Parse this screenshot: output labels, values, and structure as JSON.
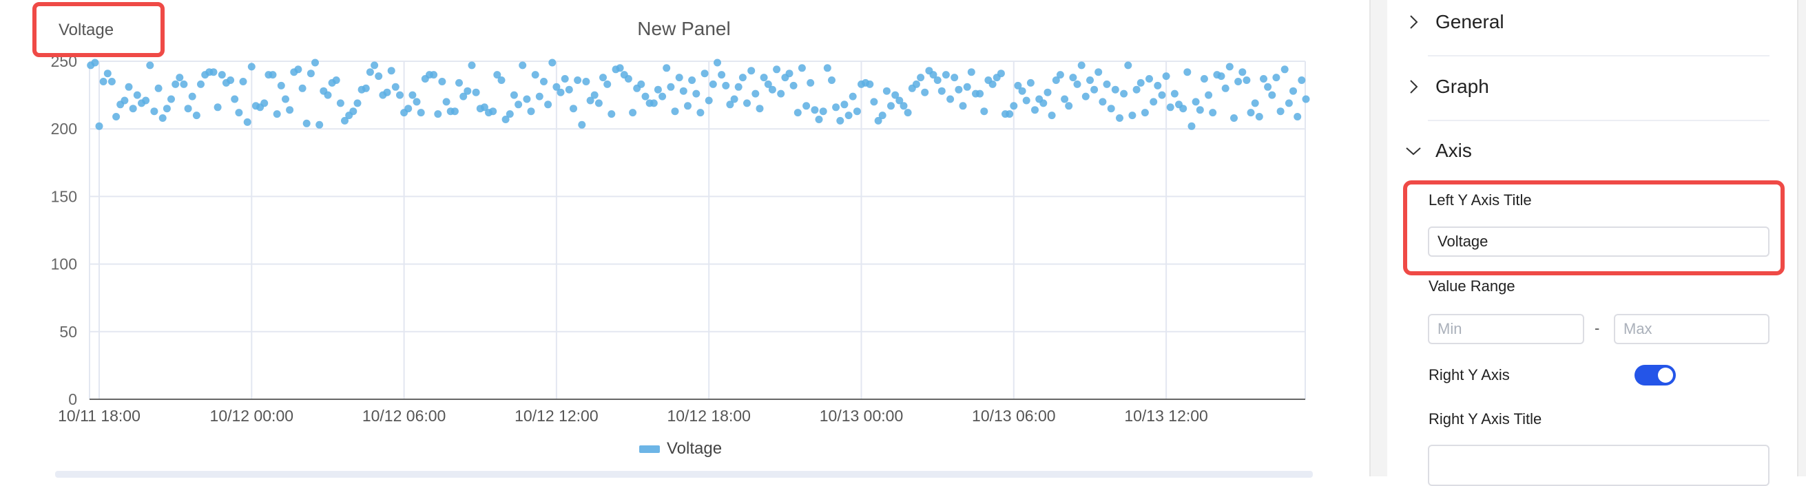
{
  "panel": {
    "title": "New Panel",
    "y_axis_title": "Voltage",
    "legend": [
      {
        "label": "Voltage",
        "color": "#6db5e6"
      }
    ]
  },
  "chart_data": {
    "type": "scatter",
    "title": "New Panel",
    "ylabel": "Voltage",
    "xlabel": "",
    "ylim": [
      0,
      250
    ],
    "yticks": [
      "0",
      "50",
      "100",
      "150",
      "200",
      "250"
    ],
    "xticks": [
      "10/11 18:00",
      "10/12 00:00",
      "10/12 06:00",
      "10/12 12:00",
      "10/12 18:00",
      "10/13 00:00",
      "10/13 06:00",
      "10/13 12:00"
    ],
    "grid": true,
    "legend_position": "bottom",
    "series": [
      {
        "name": "Voltage",
        "color": "#5aaee3",
        "x_start": "10/11 17:40",
        "x_interval_minutes": 10,
        "values": [
          247,
          249,
          202,
          235,
          241,
          235,
          209,
          218,
          221,
          231,
          215,
          225,
          219,
          221,
          247,
          213,
          230,
          208,
          215,
          222,
          233,
          238,
          233,
          215,
          224,
          210,
          233,
          240,
          242,
          242,
          216,
          240,
          234,
          236,
          222,
          212,
          235,
          205,
          246,
          217,
          216,
          219,
          240,
          240,
          211,
          232,
          222,
          214,
          242,
          244,
          230,
          204,
          241,
          249,
          203,
          228,
          225,
          234,
          236,
          219,
          206,
          210,
          213,
          219,
          229,
          230,
          242,
          247,
          239,
          225,
          227,
          243,
          231,
          225,
          212,
          215,
          225,
          220,
          212,
          237,
          240,
          240,
          211,
          235,
          220,
          213,
          213,
          234,
          224,
          228,
          247,
          227,
          215,
          216,
          212,
          213,
          240,
          236,
          207,
          211,
          225,
          218,
          247,
          222,
          213,
          240,
          224,
          235,
          218,
          249,
          231,
          227,
          237,
          229,
          215,
          236,
          203,
          235,
          221,
          225,
          219,
          238,
          233,
          211,
          244,
          245,
          240,
          237,
          212,
          230,
          233,
          224,
          219,
          219,
          229,
          224,
          245,
          231,
          213,
          238,
          228,
          217,
          236,
          226,
          212,
          241,
          221,
          233,
          249,
          240,
          232,
          218,
          222,
          231,
          238,
          219,
          243,
          226,
          215,
          238,
          233,
          229,
          244,
          226,
          238,
          241,
          232,
          212,
          245,
          217,
          234,
          214,
          207,
          213,
          245,
          236,
          216,
          206,
          218,
          210,
          224,
          213,
          233,
          234,
          233,
          220,
          206,
          210,
          228,
          217,
          225,
          221,
          217,
          212,
          230,
          233,
          238,
          227,
          243,
          240,
          236,
          228,
          240,
          222,
          238,
          229,
          217,
          231,
          242,
          226,
          226,
          213,
          236,
          233,
          238,
          241,
          211,
          211,
          217,
          232,
          228,
          221,
          234,
          214,
          222,
          219,
          227,
          210,
          236,
          240,
          222,
          217,
          238,
          233,
          247,
          224,
          236,
          229,
          242,
          220,
          233,
          215,
          229,
          208,
          226,
          247,
          210,
          229,
          234,
          212,
          237,
          220,
          232,
          225,
          239,
          216,
          226,
          218,
          215,
          242,
          202,
          220,
          214,
          237,
          225,
          212,
          240,
          239,
          230,
          246,
          208,
          235,
          242,
          236,
          212,
          219,
          209,
          237,
          231,
          225,
          238,
          213,
          244,
          219,
          228,
          209,
          236,
          222,
          211
        ]
      }
    ]
  },
  "settings": {
    "sections": [
      {
        "label": "General",
        "expanded": false,
        "icon": "chevron-right-icon"
      },
      {
        "label": "Graph",
        "expanded": false,
        "icon": "chevron-right-icon"
      },
      {
        "label": "Axis",
        "expanded": true,
        "icon": "chevron-down-icon"
      }
    ],
    "axis": {
      "left_title_label": "Left Y Axis Title",
      "left_title_value": "Voltage",
      "value_range_label": "Value Range",
      "min_placeholder": "Min",
      "range_separator": "-",
      "max_placeholder": "Max",
      "right_axis_label": "Right Y Axis",
      "right_axis_enabled": true,
      "right_title_label": "Right Y Axis Title",
      "right_title_value": ""
    },
    "accent_color": "#2455e8",
    "highlight_color": "#ef4a46"
  }
}
